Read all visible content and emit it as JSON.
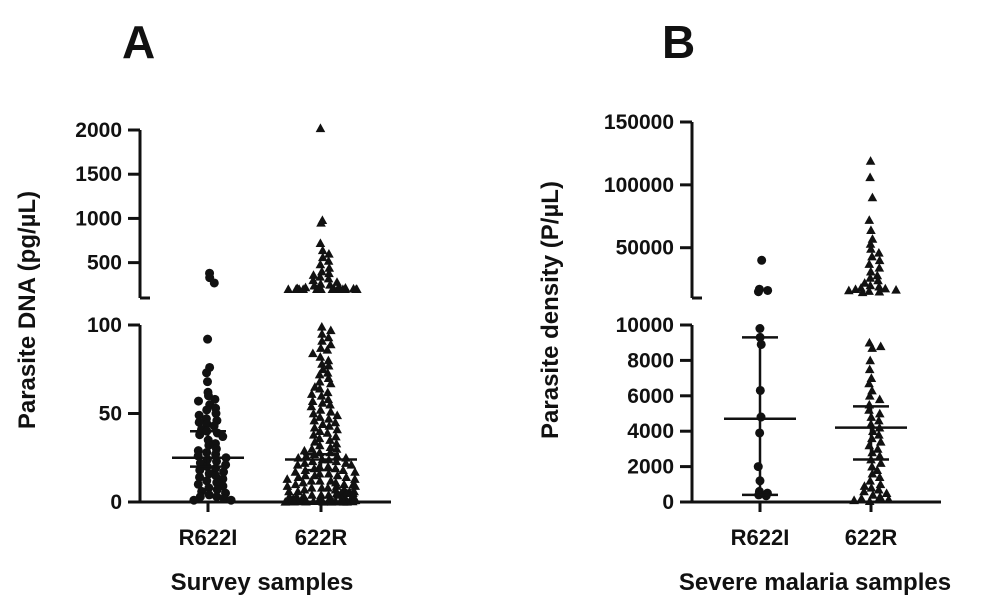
{
  "chart_data": [
    {
      "panel": "A",
      "type": "scatter",
      "xlabel": "Survey samples",
      "ylabel": "Parasite DNA (pg/µL)",
      "categories": [
        "R622I",
        "622R"
      ],
      "axis_break": {
        "lower": [
          0,
          100
        ],
        "upper": [
          100,
          2000
        ]
      },
      "yticks_lower": [
        0,
        50,
        100
      ],
      "yticks_upper": [
        500,
        1000,
        1500,
        2000
      ],
      "series": [
        {
          "category": "R622I",
          "marker": "circle",
          "median": 25,
          "iqr": [
            20,
            40
          ],
          "values": [
            380,
            330,
            270,
            92,
            76,
            73,
            68,
            62,
            60,
            58,
            57,
            55,
            53,
            52,
            50,
            49,
            47,
            46,
            45,
            44,
            43,
            41,
            40,
            39,
            38,
            37,
            35,
            33,
            32,
            30,
            29,
            28,
            27,
            26,
            25,
            24,
            23,
            22,
            21,
            20,
            19,
            18,
            17,
            16,
            15,
            14,
            13,
            12,
            11,
            10,
            9,
            8,
            7,
            6,
            5,
            4,
            3,
            3,
            2,
            1,
            1
          ]
        },
        {
          "category": "622R",
          "marker": "triangle",
          "median": 24,
          "iqr": [
            18,
            27
          ],
          "values": [
            2020,
            980,
            950,
            720,
            640,
            600,
            560,
            520,
            480,
            440,
            400,
            380,
            360,
            340,
            320,
            300,
            280,
            260,
            250,
            240,
            230,
            220,
            215,
            210,
            205,
            200,
            200,
            200,
            200,
            200,
            200,
            200,
            200,
            200,
            200,
            200,
            200,
            200,
            200,
            200,
            200,
            99,
            97,
            95,
            93,
            91,
            89,
            87,
            86,
            84,
            82,
            80,
            78,
            77,
            75,
            73,
            72,
            70,
            68,
            67,
            65,
            64,
            62,
            61,
            60,
            58,
            57,
            56,
            55,
            54,
            52,
            51,
            50,
            49,
            48,
            47,
            46,
            45,
            44,
            43,
            42,
            41,
            40,
            39,
            38,
            37,
            36,
            35,
            34,
            33,
            32,
            31,
            30,
            30,
            29,
            28,
            28,
            27,
            26,
            26,
            25,
            25,
            24,
            24,
            23,
            23,
            22,
            22,
            21,
            21,
            20,
            20,
            19,
            19,
            18,
            18,
            17,
            17,
            16,
            16,
            15,
            15,
            15,
            14,
            14,
            13,
            13,
            12,
            12,
            12,
            11,
            11,
            10,
            10,
            10,
            9,
            9,
            9,
            8,
            8,
            8,
            7,
            7,
            7,
            6,
            6,
            6,
            6,
            5,
            5,
            5,
            5,
            4,
            4,
            4,
            4,
            3,
            3,
            3,
            3,
            3,
            2,
            2,
            2,
            2,
            2,
            2,
            1,
            1,
            1,
            1,
            1,
            1,
            1,
            0.5,
            0.5,
            0.5,
            0.5,
            0.5,
            0.5,
            0.5,
            0.3,
            0.3,
            0.3,
            0.3,
            0.3,
            0.2,
            0.2,
            0.2,
            0.2,
            0.1,
            0.1,
            0.1,
            0.1,
            0.1
          ]
        }
      ]
    },
    {
      "panel": "B",
      "type": "scatter",
      "xlabel": "Severe malaria samples",
      "ylabel": "Parasite density (P/µL)",
      "categories": [
        "R622I",
        "622R"
      ],
      "axis_break": {
        "lower": [
          0,
          10000
        ],
        "upper": [
          10000,
          150000
        ]
      },
      "yticks_lower": [
        0,
        2000,
        4000,
        6000,
        8000,
        10000
      ],
      "yticks_upper": [
        50000,
        100000,
        150000
      ],
      "series": [
        {
          "category": "R622I",
          "marker": "circle",
          "median": 4700,
          "iqr": [
            400,
            9300
          ],
          "values": [
            40000,
            17000,
            16000,
            15000,
            9800,
            9300,
            8900,
            6300,
            4800,
            3900,
            2000,
            1200,
            600,
            500,
            400,
            350
          ]
        },
        {
          "category": "622R",
          "marker": "triangle",
          "median": 4200,
          "iqr": [
            2400,
            5400
          ],
          "values": [
            119000,
            106000,
            90000,
            72000,
            64000,
            57000,
            53000,
            49000,
            46000,
            43000,
            40000,
            37000,
            34000,
            31000,
            28000,
            26000,
            24000,
            22000,
            20000,
            19000,
            18000,
            17500,
            17000,
            16500,
            16000,
            15500,
            15000,
            14500,
            9000,
            8800,
            8700,
            8000,
            7500,
            7000,
            6700,
            6300,
            6000,
            5800,
            5500,
            5200,
            5000,
            4800,
            4600,
            4400,
            4200,
            4000,
            3800,
            3600,
            3400,
            3200,
            3000,
            2800,
            2600,
            2400,
            2200,
            2000,
            1800,
            1600,
            1400,
            1200,
            1000,
            900,
            800,
            700,
            600,
            500,
            400,
            300,
            200,
            150,
            100,
            50
          ]
        }
      ]
    }
  ]
}
